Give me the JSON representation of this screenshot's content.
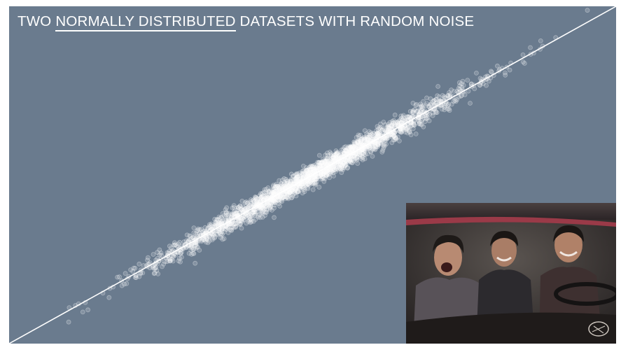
{
  "title": {
    "prefix": "TWO",
    "highlight": "NORMALLY DISTRIBUTED",
    "suffix": "DATASETS WITH RANDOM NOISE"
  },
  "colors": {
    "background": "#6a7b8e",
    "points": "#ffffff",
    "trend_line": "#ffffff"
  },
  "chart_data": {
    "type": "scatter",
    "title": "TWO NORMALLY DISTRIBUTED DATASETS WITH RANDOM NOISE",
    "xlabel": "",
    "ylabel": "",
    "xlim": [
      -4,
      4
    ],
    "ylim": [
      -4,
      4
    ],
    "axes_visible": false,
    "grid": false,
    "distribution": "bivariate normal, mean 0, sd 1, correlation ~0.99",
    "n_points": 2500,
    "trend_line": {
      "slope": 1.0,
      "intercept": 0.0
    },
    "point_style": "hollow white circles, translucent"
  },
  "inset_photo": {
    "icon": "photo-of-three-laughing-men-in-car-icon",
    "description_visible": false
  }
}
